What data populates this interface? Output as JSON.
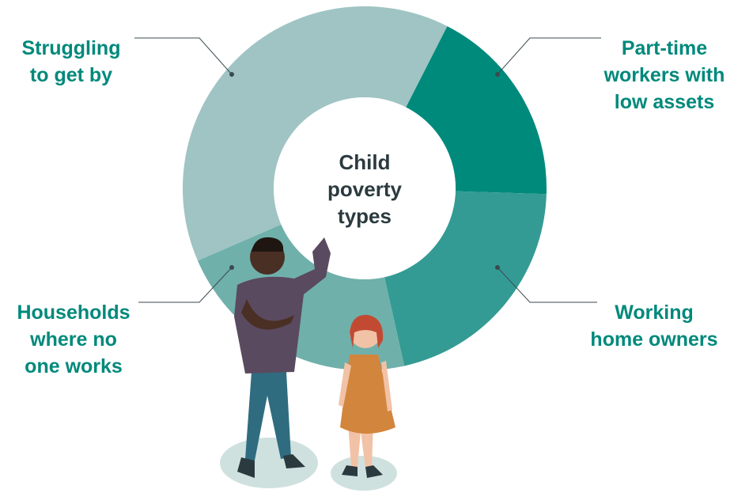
{
  "chart_data": {
    "type": "pie",
    "title": "Child poverty types",
    "categories": [
      "Part-time workers with low assets",
      "Working home owners",
      "Households where no one works",
      "Struggling to get by"
    ],
    "values": [
      18,
      21,
      22,
      39
    ],
    "colors": [
      "#008a7c",
      "#339b93",
      "#6fb0ab",
      "#9fc4c3"
    ],
    "donut": true
  }
}
